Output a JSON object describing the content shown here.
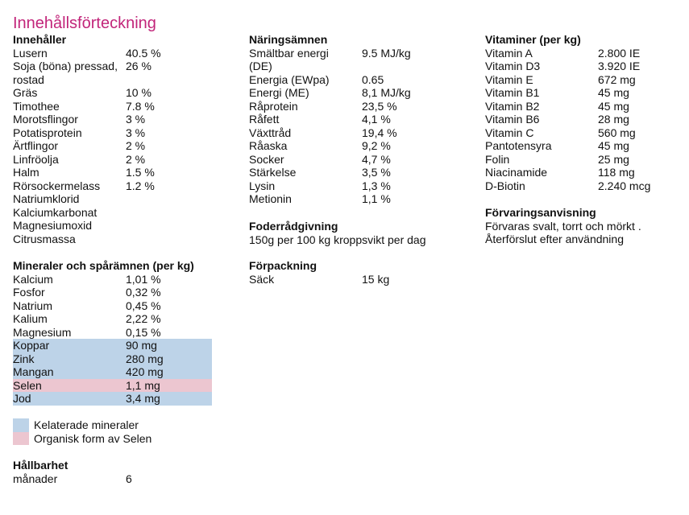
{
  "title": "Innehållsförteckning",
  "contents": {
    "heading": "Innehåller",
    "items": [
      {
        "name": "Lusern",
        "value": "40.5 %"
      },
      {
        "name": "Soja (böna) pressad,",
        "value": "26 %"
      },
      {
        "name": "rostad",
        "value": ""
      },
      {
        "name": "Gräs",
        "value": "10 %"
      },
      {
        "name": "Timothee",
        "value": "7.8 %"
      },
      {
        "name": "Morotsflingor",
        "value": "3 %"
      },
      {
        "name": "Potatisprotein",
        "value": "3 %"
      },
      {
        "name": "Ärtflingor",
        "value": "2 %"
      },
      {
        "name": "Linfröolja",
        "value": "2 %"
      },
      {
        "name": "Halm",
        "value": "1.5 %"
      },
      {
        "name": "Rörsockermelass",
        "value": "1.2 %"
      },
      {
        "name": "Natriumklorid",
        "value": ""
      },
      {
        "name": "Kalciumkarbonat",
        "value": ""
      },
      {
        "name": "Magnesiumoxid",
        "value": ""
      },
      {
        "name": "Citrusmassa",
        "value": ""
      }
    ]
  },
  "minerals": {
    "heading": "Mineraler och spårämnen (per kg)",
    "items": [
      {
        "name": "Kalcium",
        "value": "1,01 %"
      },
      {
        "name": "Fosfor",
        "value": "0,32 %"
      },
      {
        "name": "Natrium",
        "value": "0,45 %"
      },
      {
        "name": "Kalium",
        "value": "2,22 %"
      },
      {
        "name": "Magnesium",
        "value": "0,15 %"
      },
      {
        "name": "Koppar",
        "value": "90 mg"
      },
      {
        "name": "Zink",
        "value": "280 mg"
      },
      {
        "name": "Mangan",
        "value": "420 mg"
      },
      {
        "name": "Selen",
        "value": "1,1 mg"
      },
      {
        "name": "Jod",
        "value": "3,4 mg"
      }
    ]
  },
  "legend": {
    "chelated": "Kelaterade mineraler",
    "organic_selenium": "Organisk form av Selen",
    "colors": {
      "chelated": "#bdd3e8",
      "organic_selenium": "#ecc6d0"
    }
  },
  "shelf_life": {
    "heading": "Hållbarhet",
    "label": "månader",
    "value": "6"
  },
  "nutrients": {
    "heading": "Näringsämnen",
    "items": [
      {
        "name": "Smältbar energi",
        "value": "9.5 MJ/kg"
      },
      {
        "name": "(DE)",
        "value": ""
      },
      {
        "name": "Energia (EWpa)",
        "value": "0.65"
      },
      {
        "name": "Energi (ME)",
        "value": "8,1 MJ/kg"
      },
      {
        "name": "Råprotein",
        "value": "23,5 %"
      },
      {
        "name": "Råfett",
        "value": "4,1 %"
      },
      {
        "name": "Växttråd",
        "value": "19,4 %"
      },
      {
        "name": "Råaska",
        "value": "9,2 %"
      },
      {
        "name": "Socker",
        "value": "4,7 %"
      },
      {
        "name": "Stärkelse",
        "value": "3,5 %"
      },
      {
        "name": "Lysin",
        "value": "1,3 %"
      },
      {
        "name": "Metionin",
        "value": "1,1 %"
      }
    ]
  },
  "feeding": {
    "heading": "Foderrådgivning",
    "text": "150g per 100 kg kroppsvikt per dag"
  },
  "packaging": {
    "heading": "Förpackning",
    "label": "Säck",
    "value": "15 kg"
  },
  "vitamins": {
    "heading": "Vitaminer (per kg)",
    "items": [
      {
        "name": "Vitamin A",
        "value": "2.800 IE"
      },
      {
        "name": "Vitamin D3",
        "value": "3.920 IE"
      },
      {
        "name": "Vitamin E",
        "value": "672 mg"
      },
      {
        "name": "Vitamin B1",
        "value": "45 mg"
      },
      {
        "name": "Vitamin B2",
        "value": "45 mg"
      },
      {
        "name": "Vitamin B6",
        "value": "28 mg"
      },
      {
        "name": "Vitamin C",
        "value": "560 mg"
      },
      {
        "name": "Pantotensyra",
        "value": "45 mg"
      },
      {
        "name": "Folin",
        "value": "25 mg"
      },
      {
        "name": "Niacinamide",
        "value": "118 mg"
      },
      {
        "name": "D-Biotin",
        "value": "2.240 mcg"
      }
    ]
  },
  "storage": {
    "heading": "Förvaringsanvisning",
    "line1": "Förvaras svalt, torrt och mörkt .",
    "line2": "Återförslut efter användning"
  }
}
